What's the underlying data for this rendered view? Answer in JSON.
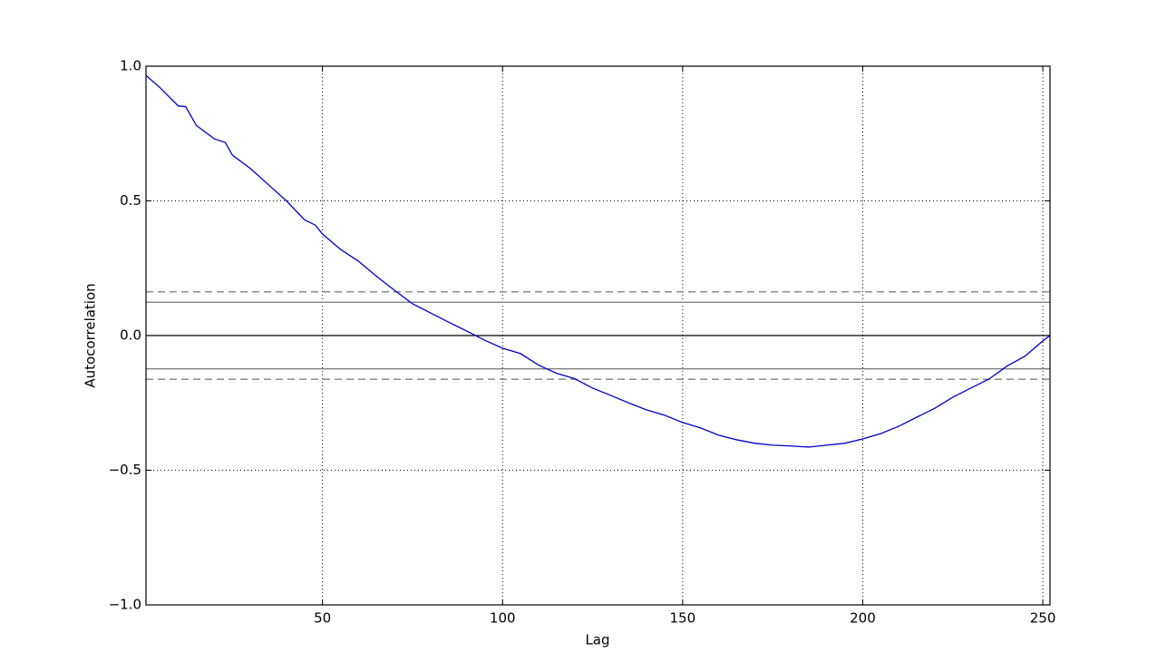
{
  "chart_data": {
    "type": "line",
    "xlabel": "Lag",
    "ylabel": "Autocorrelation",
    "x": [
      1,
      5,
      10,
      12,
      15,
      20,
      23,
      25,
      30,
      35,
      40,
      45,
      48,
      50,
      55,
      60,
      65,
      70,
      75,
      80,
      85,
      90,
      95,
      100,
      105,
      110,
      115,
      120,
      125,
      130,
      135,
      140,
      145,
      150,
      155,
      160,
      165,
      170,
      175,
      180,
      185,
      190,
      195,
      200,
      205,
      210,
      215,
      220,
      225,
      230,
      235,
      240,
      245,
      250,
      252
    ],
    "series": [
      {
        "color": "#0000cc",
        "values": [
          0.966,
          0.919,
          0.852,
          0.85,
          0.78,
          0.73,
          0.717,
          0.67,
          0.62,
          0.56,
          0.5,
          0.43,
          0.41,
          0.377,
          0.32,
          0.276,
          0.22,
          0.168,
          0.118,
          0.084,
          0.05,
          0.017,
          -0.017,
          -0.047,
          -0.067,
          -0.11,
          -0.14,
          -0.16,
          -0.195,
          -0.222,
          -0.25,
          -0.276,
          -0.296,
          -0.323,
          -0.343,
          -0.37,
          -0.387,
          -0.4,
          -0.407,
          -0.41,
          -0.414,
          -0.407,
          -0.4,
          -0.384,
          -0.364,
          -0.337,
          -0.303,
          -0.27,
          -0.229,
          -0.195,
          -0.162,
          -0.114,
          -0.077,
          -0.02,
          0
        ]
      }
    ],
    "hlines": [
      {
        "value": 0.1623,
        "color": "#808080",
        "style": "dashed"
      },
      {
        "value": 0.1235,
        "color": "#808080",
        "style": "solid"
      },
      {
        "value": 0,
        "color": "#000000",
        "style": "solid"
      },
      {
        "value": -0.1235,
        "color": "#808080",
        "style": "solid"
      },
      {
        "value": -0.1623,
        "color": "#808080",
        "style": "dashed"
      }
    ],
    "xlim": [
      1,
      252
    ],
    "ylim": [
      -1,
      1
    ],
    "xticks": [
      50,
      100,
      150,
      200,
      250
    ],
    "yticks": [
      {
        "value": -1,
        "label": "−1.0"
      },
      {
        "value": -0.5,
        "label": "−0.5"
      },
      {
        "value": 0,
        "label": "0.0"
      },
      {
        "value": 0.5,
        "label": "0.5"
      },
      {
        "value": 1,
        "label": "1.0"
      }
    ],
    "grid": true
  }
}
